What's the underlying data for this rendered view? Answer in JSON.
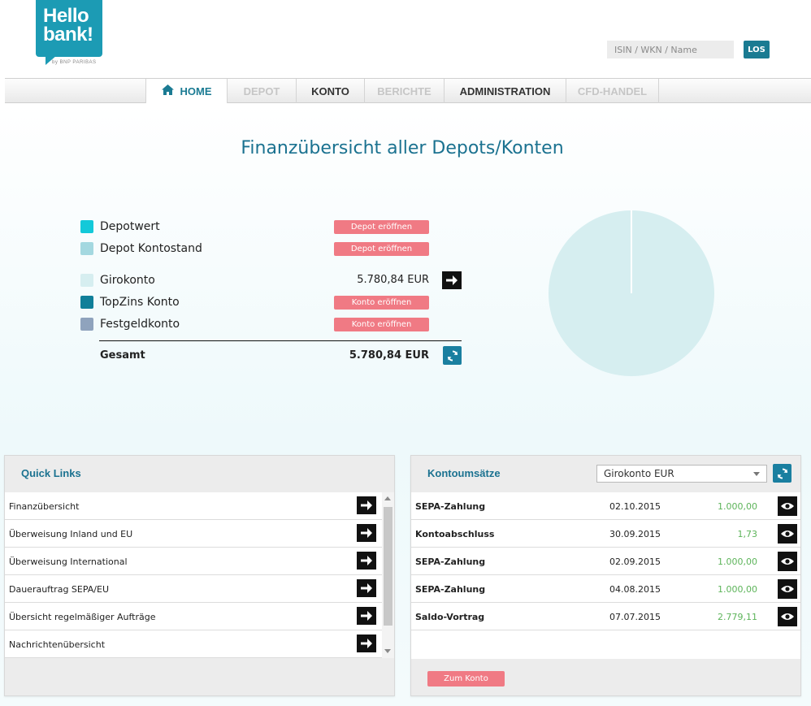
{
  "brand": {
    "line1": "Hello",
    "line2": "bank!",
    "sub": "by BNP PARIBAS"
  },
  "search": {
    "placeholder": "ISIN / WKN / Name",
    "button": "LOS"
  },
  "nav": {
    "home": "HOME",
    "depot": "DEPOT",
    "konto": "KONTO",
    "berichte": "BERICHTE",
    "administration": "ADMINISTRATION",
    "cfd": "CFD-HANDEL"
  },
  "page_title": "Finanzübersicht aller Depots/Konten",
  "overview": {
    "depotwert": {
      "label": "Depotwert",
      "button": "Depot eröffnen",
      "color": "#13c9d9"
    },
    "depot_kontostand": {
      "label": "Depot Kontostand",
      "button": "Depot eröffnen",
      "color": "#a4d8e0"
    },
    "girokonto": {
      "label": "Girokonto",
      "amount": "5.780,84 EUR",
      "color": "#d6eef0"
    },
    "topzins": {
      "label": "TopZins Konto",
      "button": "Konto eröffnen",
      "color": "#107f99"
    },
    "festgeld": {
      "label": "Festgeldkonto",
      "button": "Konto eröffnen",
      "color": "#8fa3bd"
    },
    "total": {
      "label": "Gesamt",
      "amount": "5.780,84 EUR"
    }
  },
  "chart_data": {
    "type": "pie",
    "slices": [
      {
        "label": "Girokonto",
        "value": 5780.84,
        "color": "#d6eef0"
      }
    ]
  },
  "quick_links": {
    "title": "Quick Links",
    "items": [
      "Finanzübersicht",
      "Überweisung Inland und EU",
      "Überweisung International",
      "Dauerauftrag SEPA/EU",
      "Übersicht regelmäßiger Aufträge",
      "Nachrichtenübersicht"
    ]
  },
  "transactions": {
    "title": "Kontoumsätze",
    "selected_account": "Girokonto EUR",
    "rows": [
      {
        "type": "SEPA-Zahlung",
        "date": "02.10.2015",
        "amount": "1.000,00"
      },
      {
        "type": "Kontoabschluss",
        "date": "30.09.2015",
        "amount": "1,73"
      },
      {
        "type": "SEPA-Zahlung",
        "date": "02.09.2015",
        "amount": "1.000,00"
      },
      {
        "type": "SEPA-Zahlung",
        "date": "04.08.2015",
        "amount": "1.000,00"
      },
      {
        "type": "Saldo-Vortrag",
        "date": "07.07.2015",
        "amount": "2.779,11"
      }
    ],
    "button": "Zum Konto"
  }
}
